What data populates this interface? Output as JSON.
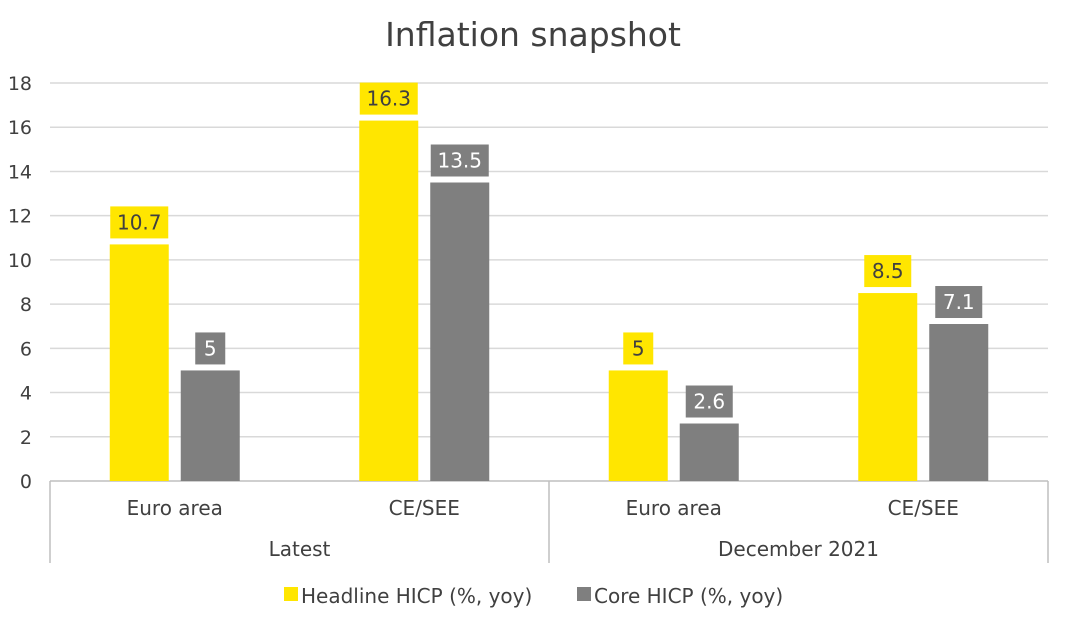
{
  "chart_data": {
    "type": "bar",
    "title": "Inflation snapshot",
    "xlabel": "",
    "ylabel": "",
    "ylim": [
      0,
      18
    ],
    "yticks": [
      0,
      2,
      4,
      6,
      8,
      10,
      12,
      14,
      16,
      18
    ],
    "grid": true,
    "legend_position": "bottom",
    "groups": [
      {
        "label": "Latest",
        "categories": [
          "Euro area",
          "CE/SEE"
        ]
      },
      {
        "label": "December 2021",
        "categories": [
          "Euro area",
          "CE/SEE"
        ]
      }
    ],
    "categories": [
      "Euro area",
      "CE/SEE",
      "Euro area",
      "CE/SEE"
    ],
    "series": [
      {
        "name": "Headline HICP (%, yoy)",
        "color": "#ffe600",
        "label_text_color": "#404040",
        "values": [
          10.7,
          16.3,
          5,
          8.5
        ]
      },
      {
        "name": "Core HICP (%, yoy)",
        "color": "#7f7f7f",
        "label_text_color": "#ffffff",
        "values": [
          5,
          13.5,
          2.6,
          7.1
        ]
      }
    ]
  }
}
